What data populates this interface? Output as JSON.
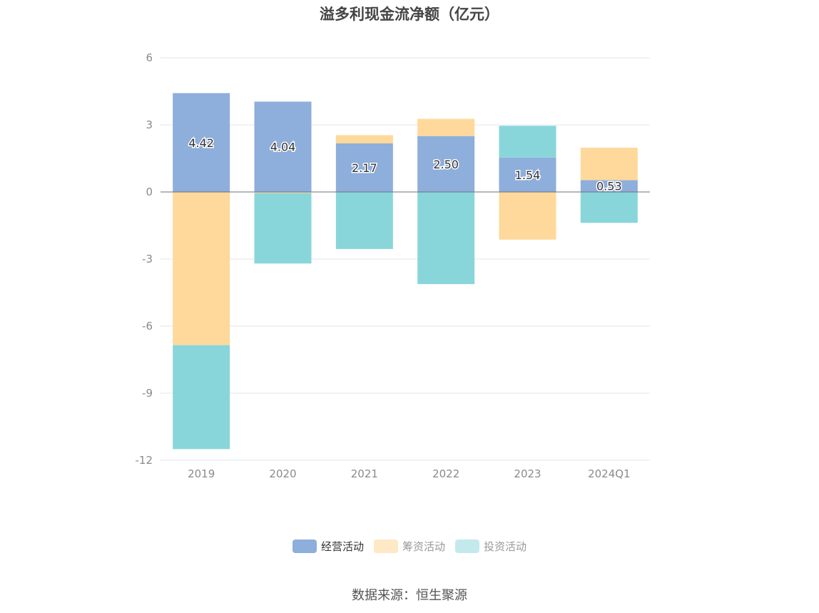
{
  "title": "溢多利现金流净额（亿元）",
  "source": "数据来源：恒生聚源",
  "chart_data": {
    "type": "bar",
    "stacked": true,
    "title": "溢多利现金流净额（亿元）",
    "categories": [
      "2019",
      "2020",
      "2021",
      "2022",
      "2023",
      "2024Q1"
    ],
    "ylim": [
      -12,
      6
    ],
    "yticks": [
      6,
      3,
      0,
      -3,
      -6,
      -9,
      -12
    ],
    "grid": true,
    "legend_position": "bottom",
    "series": [
      {
        "name": "经营活动",
        "color": "#8eaedb",
        "values": [
          4.42,
          4.04,
          2.17,
          2.5,
          1.54,
          0.53
        ],
        "labels": [
          "4.42",
          "4.04",
          "2.17",
          "2.50",
          "1.54",
          "0.53"
        ]
      },
      {
        "name": "筹资活动",
        "color": "#fed99b",
        "values": [
          -6.85,
          -0.05,
          0.37,
          0.77,
          -2.13,
          1.45
        ]
      },
      {
        "name": "投资活动",
        "color": "#88d6da",
        "values": [
          -4.65,
          -3.15,
          -2.55,
          -4.12,
          1.42,
          -1.38
        ]
      }
    ]
  }
}
